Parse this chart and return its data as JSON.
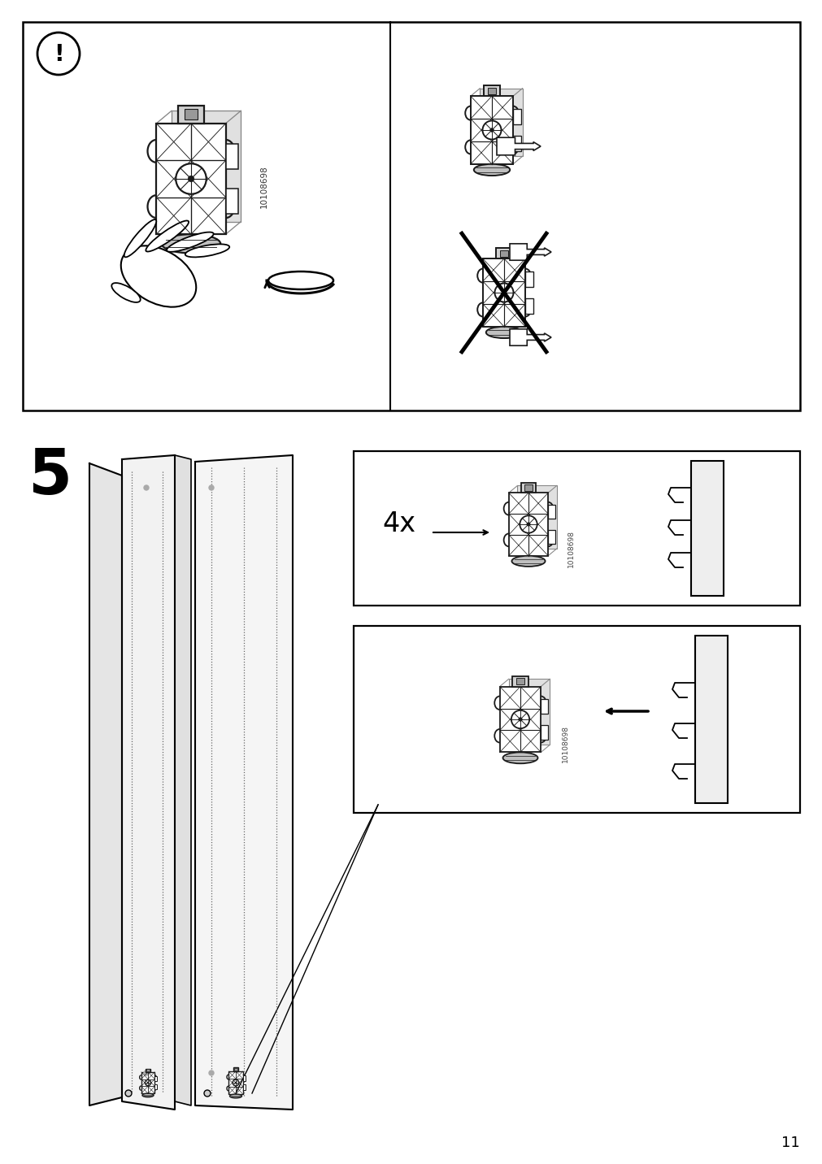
{
  "page_number": "11",
  "bg": "#ffffff",
  "black": "#000000",
  "gray_light": "#e8e8e8",
  "gray_mid": "#cccccc",
  "step_num": "5",
  "qty": "4x",
  "part_id": "10108698"
}
